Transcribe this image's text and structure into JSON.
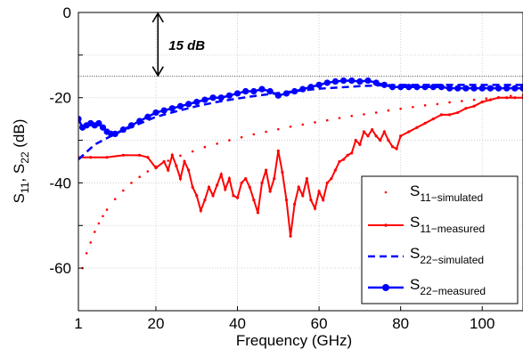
{
  "chart_data": {
    "type": "line",
    "xlabel": "Frequency (GHz)",
    "ylabel_parts": [
      "S",
      "11",
      ", S",
      "22",
      " (dB)"
    ],
    "xlim": [
      1,
      110
    ],
    "ylim": [
      -70,
      0
    ],
    "xticks": [
      1,
      20,
      40,
      60,
      80,
      100
    ],
    "yticks": [
      0,
      -20,
      -40,
      -60
    ],
    "grid": true,
    "reference_line_y": -15,
    "annotation": {
      "text": "15 dB",
      "from_y": 0,
      "to_y": -15,
      "x": 20.5
    },
    "legend_position": "bottom-right",
    "series": [
      {
        "name_main": "S",
        "name_sub": "11−simulated",
        "color": "#ff0000",
        "style": "dotted",
        "x": [
          2,
          3,
          4,
          5,
          6,
          7,
          8,
          10,
          12,
          14,
          16,
          18,
          20,
          23,
          26,
          29,
          32,
          35,
          38,
          41,
          44,
          47,
          50,
          53,
          56,
          59,
          62,
          65,
          68,
          71,
          74,
          77,
          80,
          83,
          86,
          89,
          92,
          95,
          98,
          101,
          104,
          107,
          110
        ],
        "y": [
          -60,
          -56.5,
          -54,
          -51.5,
          -49.5,
          -47.8,
          -46.3,
          -43.8,
          -41.8,
          -40,
          -38.6,
          -37.3,
          -36.2,
          -34.8,
          -33.6,
          -32.6,
          -31.6,
          -30.8,
          -30,
          -29.3,
          -28.6,
          -28,
          -27.4,
          -26.8,
          -26.3,
          -25.8,
          -25.3,
          -24.8,
          -24.3,
          -23.9,
          -23.5,
          -23,
          -22.6,
          -22.2,
          -21.8,
          -21.5,
          -21.1,
          -20.8,
          -20.5,
          -20.2,
          -19.9,
          -19.6,
          -19.4
        ]
      },
      {
        "name_main": "S",
        "name_sub": "11−measured",
        "color": "#ff0000",
        "style": "solid-small-markers",
        "x": [
          1,
          4,
          8,
          12,
          16,
          18,
          20,
          22,
          23,
          24,
          25,
          26,
          27,
          28,
          29,
          30,
          31,
          32,
          33,
          34,
          35,
          36,
          37,
          38,
          39,
          40,
          41,
          42,
          43,
          44,
          45,
          46,
          47,
          48,
          49,
          50,
          51,
          52,
          53,
          54,
          55,
          56,
          57,
          58,
          59,
          60,
          61,
          62,
          63,
          64,
          65,
          66,
          67,
          68,
          69,
          70,
          71,
          72,
          73,
          74,
          75,
          76,
          77,
          78,
          79,
          80,
          82,
          84,
          86,
          88,
          90,
          92,
          94,
          96,
          98,
          100,
          102,
          104,
          106,
          108,
          110
        ],
        "y": [
          -34,
          -34,
          -34,
          -33.5,
          -33.5,
          -34,
          -36.5,
          -35,
          -37,
          -33.5,
          -36,
          -39,
          -35,
          -37,
          -41,
          -43,
          -46.5,
          -44,
          -41,
          -43,
          -40.5,
          -38,
          -41.5,
          -39,
          -43,
          -43.5,
          -40,
          -39,
          -41,
          -44,
          -47,
          -40,
          -37,
          -42,
          -39,
          -32.5,
          -37.5,
          -44,
          -52.5,
          -45,
          -41,
          -43,
          -39,
          -44,
          -46,
          -42,
          -44,
          -40,
          -39,
          -37,
          -35,
          -34.5,
          -33.5,
          -33,
          -30,
          -31,
          -28,
          -29,
          -27.5,
          -29,
          -30,
          -28,
          -30,
          -31.5,
          -32,
          -29,
          -28,
          -27,
          -26,
          -25,
          -24,
          -24,
          -23.5,
          -22.5,
          -22,
          -21,
          -20.5,
          -20,
          -20,
          -20,
          -20
        ]
      },
      {
        "name_main": "S",
        "name_sub": "22−simulated",
        "color": "#0000ff",
        "style": "dashed",
        "x": [
          1,
          5,
          10,
          15,
          20,
          25,
          30,
          35,
          40,
          45,
          50,
          55,
          60,
          65,
          70,
          75,
          80,
          85,
          90,
          95,
          100,
          105,
          110
        ],
        "y": [
          -34.5,
          -31,
          -28.5,
          -26.5,
          -24.5,
          -23.2,
          -22,
          -21,
          -20.2,
          -19.5,
          -18.9,
          -18.4,
          -17.9,
          -17.6,
          -17.3,
          -17.1,
          -17,
          -17,
          -17,
          -17,
          -17,
          -17,
          -17
        ]
      },
      {
        "name_main": "S",
        "name_sub": "22−measured",
        "color": "#0000ff",
        "style": "solid-large-markers",
        "x": [
          1,
          2,
          3,
          4,
          5,
          6,
          7,
          8,
          9,
          10,
          12,
          14,
          16,
          18,
          20,
          22,
          24,
          26,
          28,
          30,
          32,
          34,
          36,
          38,
          40,
          42,
          44,
          46,
          48,
          50,
          52,
          54,
          56,
          58,
          60,
          62,
          64,
          66,
          68,
          70,
          72,
          74,
          76,
          78,
          80,
          82,
          84,
          86,
          88,
          90,
          92,
          94,
          96,
          98,
          100,
          102,
          104,
          106,
          108,
          110
        ],
        "y": [
          -25,
          -27,
          -26.5,
          -26,
          -26.5,
          -26,
          -27,
          -28,
          -28.5,
          -28.5,
          -27.5,
          -26.5,
          -25.5,
          -24.5,
          -23.5,
          -23,
          -22.5,
          -22,
          -21.5,
          -21,
          -20.5,
          -20,
          -20,
          -19.5,
          -19,
          -18.5,
          -18.5,
          -18,
          -18.5,
          -19.5,
          -19,
          -18.5,
          -18,
          -17.5,
          -17,
          -16.5,
          -16.2,
          -16,
          -16,
          -16.2,
          -16,
          -16.5,
          -17,
          -17.5,
          -17.5,
          -17.5,
          -17.5,
          -17.5,
          -17.5,
          -17.5,
          -17.8,
          -17.8,
          -17.8,
          -17.8,
          -17.8,
          -17.8,
          -17.8,
          -17.8,
          -17.8,
          -17.8
        ]
      }
    ]
  }
}
